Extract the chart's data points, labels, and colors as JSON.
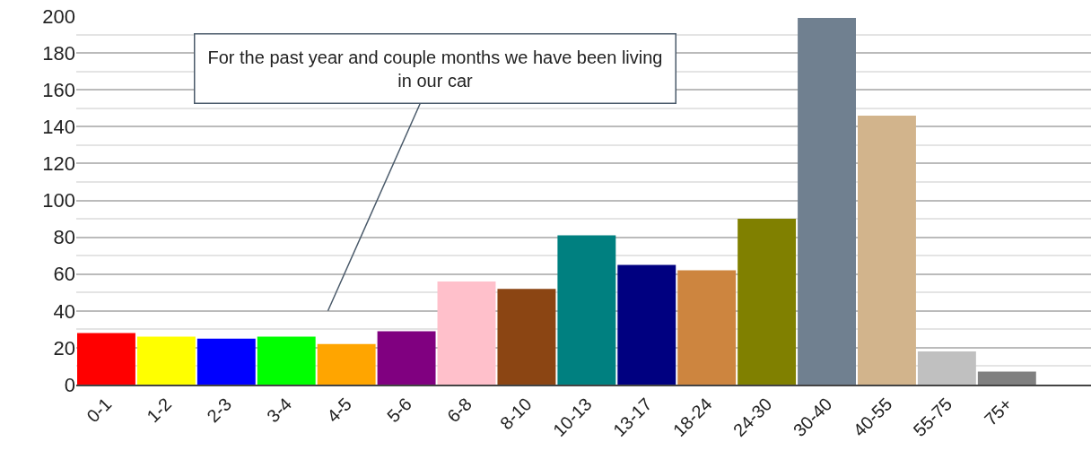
{
  "chart_data": {
    "type": "bar",
    "categories": [
      "0-1",
      "1-2",
      "2-3",
      "3-4",
      "4-5",
      "5-6",
      "6-8",
      "8-10",
      "10-13",
      "13-17",
      "18-24",
      "24-30",
      "30-40",
      "40-55",
      "55-75",
      "75+"
    ],
    "values": [
      28,
      26,
      25,
      26,
      22,
      29,
      56,
      52,
      81,
      65,
      62,
      90,
      199,
      146,
      18,
      7
    ],
    "colors": [
      "#ff0000",
      "#ffff00",
      "#0000ff",
      "#00ff00",
      "#ffa500",
      "#800080",
      "#ffc0cb",
      "#8b4513",
      "#008080",
      "#000080",
      "#cd853f",
      "#808000",
      "#708090",
      "#d2b48c",
      "#c0c0c0",
      "#808080"
    ],
    "ylim": [
      0,
      200
    ],
    "yticks": [
      0,
      20,
      40,
      60,
      80,
      100,
      120,
      140,
      160,
      180,
      200
    ],
    "grid": "y",
    "annotations": [
      "For the past year and couple months we have been living in our car"
    ]
  }
}
